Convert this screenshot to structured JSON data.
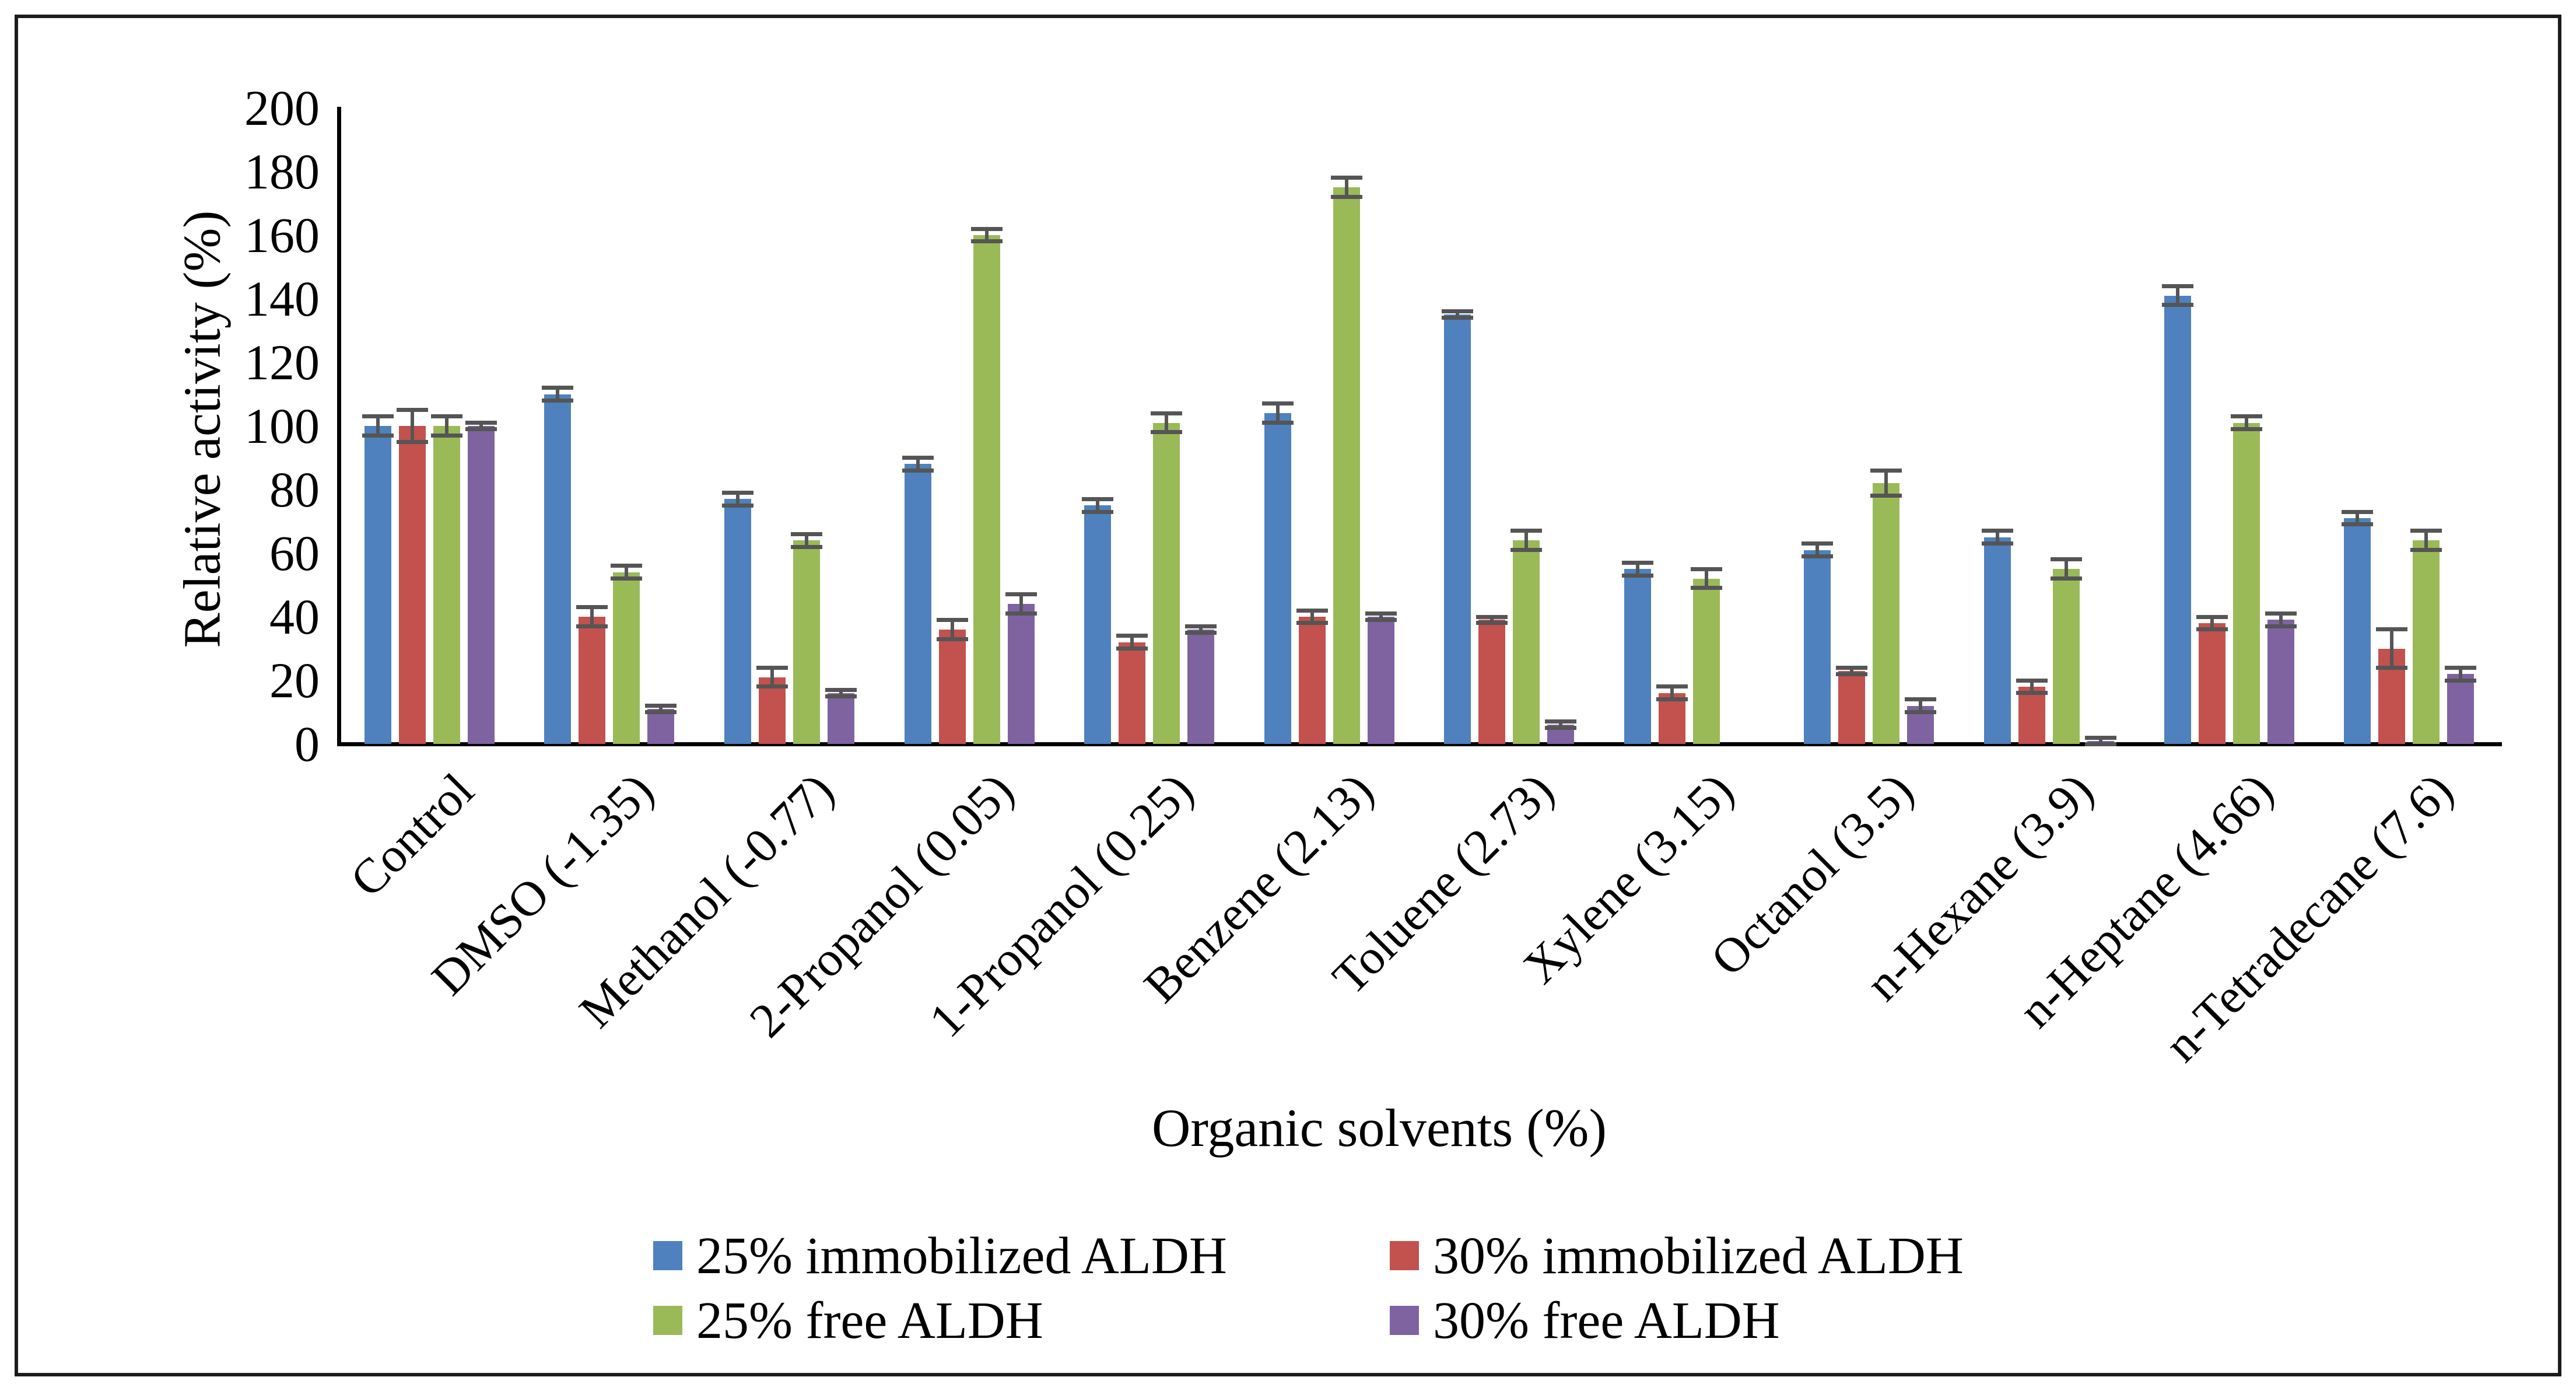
{
  "chart_data": {
    "type": "bar",
    "title": "",
    "xlabel": "Organic solvents (%)",
    "ylabel": "Relative activity (%)",
    "ylim": [
      0,
      200
    ],
    "ytick_step": 20,
    "grid": false,
    "legend_position": "bottom-two-columns",
    "error_bar_color": "#555555",
    "categories": [
      "Control",
      "DMSO (-1.35)",
      "Methanol (-0.77)",
      "2-Propanol (0.05)",
      "1-Propanol (0.25)",
      "Benzene (2.13)",
      "Toluene (2.73)",
      "Xylene (3.15)",
      "Octanol (3.5)",
      "n-Hexane (3.9)",
      "n-Heptane (4.66)",
      "n-Tetradecane (7.6)"
    ],
    "series": [
      {
        "name": "25% immobilized ALDH",
        "color": "#4E81BD",
        "values": [
          100,
          110,
          77,
          88,
          75,
          104,
          135,
          55,
          61,
          65,
          141,
          71
        ],
        "errors": [
          3,
          2,
          2,
          2,
          2,
          3,
          1,
          2,
          2,
          2,
          3,
          2
        ]
      },
      {
        "name": "30% immobilized ALDH",
        "color": "#C3514E",
        "values": [
          100,
          40,
          21,
          36,
          32,
          40,
          39,
          16,
          23,
          18,
          38,
          30
        ],
        "errors": [
          5,
          3,
          3,
          3,
          2,
          2,
          1,
          2,
          1,
          2,
          2,
          6
        ]
      },
      {
        "name": "25% free ALDH",
        "color": "#9ABA58",
        "values": [
          100,
          54,
          64,
          160,
          101,
          175,
          64,
          52,
          82,
          55,
          101,
          64
        ],
        "errors": [
          3,
          2,
          2,
          2,
          3,
          3,
          3,
          3,
          4,
          3,
          2,
          3
        ]
      },
      {
        "name": "30% free ALDH",
        "color": "#7F63A1",
        "values": [
          100,
          11,
          16,
          44,
          36,
          40,
          6,
          0,
          12,
          1,
          39,
          22
        ],
        "errors": [
          1,
          1,
          1,
          3,
          1,
          1,
          1,
          0,
          2,
          1,
          2,
          2
        ]
      }
    ]
  }
}
